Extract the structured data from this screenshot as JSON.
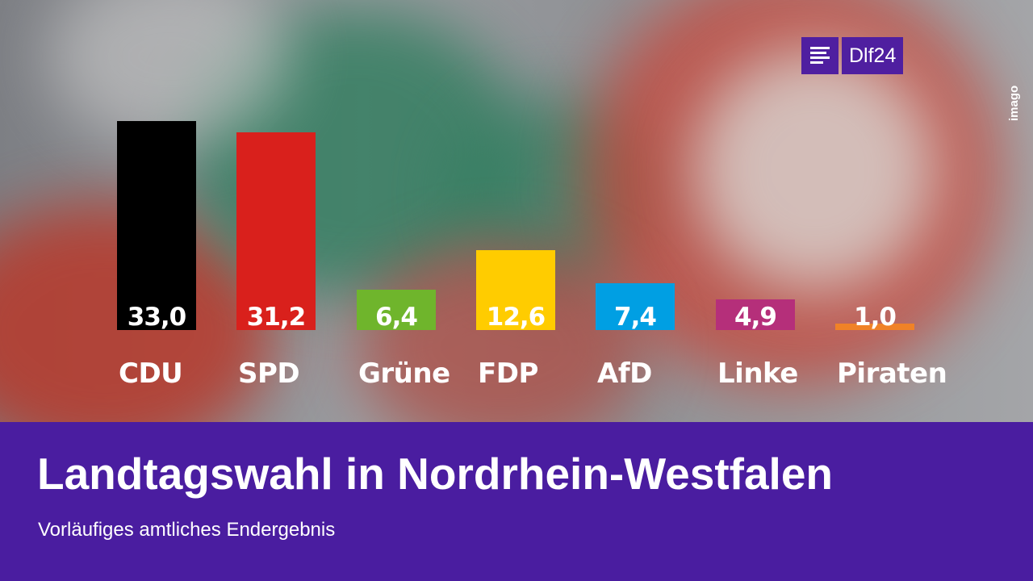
{
  "brand": {
    "logo_text": "Dlf24",
    "photo_credit": "imago"
  },
  "footer": {
    "title": "Landtagswahl in Nordrhein-Westfalen",
    "subtitle": "Vorläufiges amtliches Endergebnis"
  },
  "chart_data": {
    "type": "bar",
    "categories": [
      "CDU",
      "SPD",
      "Grüne",
      "FDP",
      "AfD",
      "Linke",
      "Piraten"
    ],
    "values": [
      33.0,
      31.2,
      6.4,
      12.6,
      7.4,
      4.9,
      1.0
    ],
    "value_labels": [
      "33,0",
      "31,2",
      "6,4",
      "12,6",
      "7,4",
      "4,9",
      "1,0"
    ],
    "colors": [
      "#000000",
      "#d9201c",
      "#6fb52c",
      "#ffcc00",
      "#009fe3",
      "#b52f7a",
      "#f08227"
    ],
    "title": "Landtagswahl in Nordrhein-Westfalen",
    "subtitle": "Vorläufiges amtliches Endergebnis",
    "xlabel": "",
    "ylabel": "",
    "ylim": [
      0,
      33.0
    ],
    "grid": false,
    "legend": "none"
  }
}
